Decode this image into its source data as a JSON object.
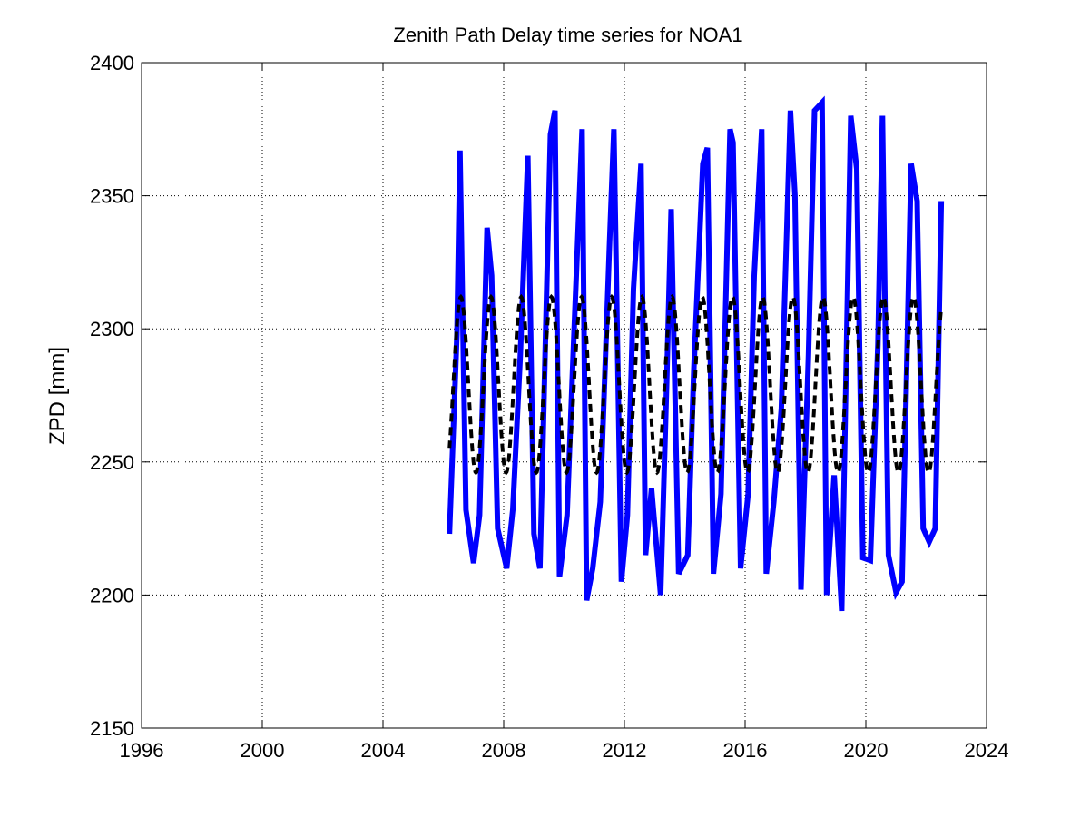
{
  "chart_data": {
    "type": "line",
    "title": "Zenith Path Delay time series for NOA1",
    "xlabel": "",
    "ylabel": "ZPD [mm]",
    "xlim": [
      1996,
      2024
    ],
    "ylim": [
      2150,
      2400
    ],
    "xticks": [
      1996,
      2000,
      2004,
      2008,
      2012,
      2016,
      2020,
      2024
    ],
    "yticks": [
      2150,
      2200,
      2250,
      2300,
      2350,
      2400
    ],
    "grid": "dotted",
    "legend": "none",
    "series": [
      {
        "style": "solid",
        "color": "#0000ff",
        "x": [
          2006.2,
          2006.45,
          2006.55,
          2006.75,
          2007.0,
          2007.2,
          2007.45,
          2007.6,
          2007.8,
          2008.1,
          2008.3,
          2008.55,
          2008.8,
          2009.0,
          2009.2,
          2009.55,
          2009.7,
          2009.85,
          2010.1,
          2010.3,
          2010.6,
          2010.75,
          2010.95,
          2011.2,
          2011.5,
          2011.65,
          2011.9,
          2012.1,
          2012.3,
          2012.55,
          2012.7,
          2012.9,
          2013.2,
          2013.4,
          2013.55,
          2013.8,
          2014.1,
          2014.3,
          2014.6,
          2014.75,
          2014.95,
          2015.2,
          2015.5,
          2015.6,
          2015.85,
          2016.1,
          2016.3,
          2016.55,
          2016.7,
          2016.95,
          2017.2,
          2017.5,
          2017.65,
          2017.85,
          2018.1,
          2018.3,
          2018.55,
          2018.7,
          2018.95,
          2019.2,
          2019.5,
          2019.7,
          2019.9,
          2020.15,
          2020.4,
          2020.55,
          2020.75,
          2021.0,
          2021.2,
          2021.5,
          2021.7,
          2021.9,
          2022.1,
          2022.3,
          2022.5
        ],
        "y": [
          2223,
          2298,
          2367,
          2232,
          2212,
          2230,
          2338,
          2320,
          2225,
          2210,
          2232,
          2290,
          2365,
          2223,
          2210,
          2373,
          2382,
          2207,
          2230,
          2290,
          2375,
          2198,
          2210,
          2235,
          2330,
          2375,
          2205,
          2230,
          2315,
          2362,
          2215,
          2240,
          2200,
          2280,
          2345,
          2208,
          2215,
          2285,
          2362,
          2368,
          2208,
          2238,
          2375,
          2370,
          2210,
          2238,
          2320,
          2375,
          2208,
          2235,
          2270,
          2382,
          2350,
          2202,
          2290,
          2382,
          2385,
          2200,
          2245,
          2194,
          2380,
          2360,
          2214,
          2213,
          2294,
          2380,
          2215,
          2201,
          2205,
          2362,
          2348,
          2225,
          2220,
          2225,
          2348
        ]
      },
      {
        "style": "dashed",
        "color": "#000000",
        "model": "seasonal",
        "mean": 2279,
        "amplitude": 33,
        "period": 1,
        "peak": 0.58,
        "x_range": [
          2006.2,
          2022.5
        ]
      }
    ]
  }
}
